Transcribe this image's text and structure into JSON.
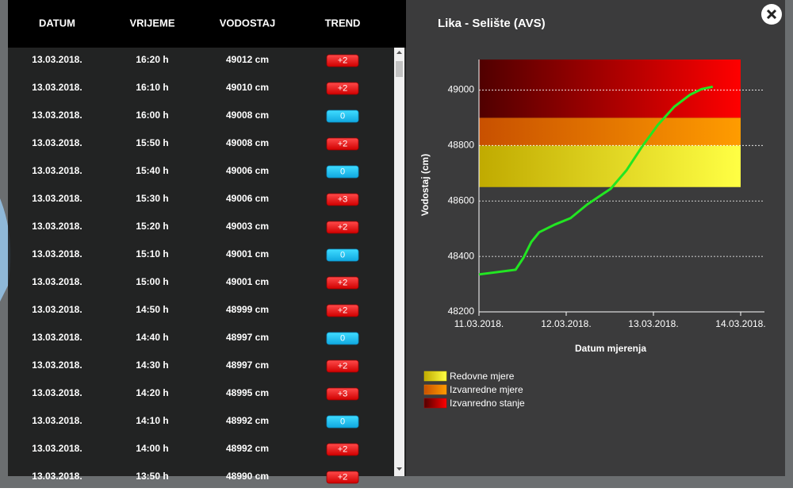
{
  "table": {
    "headers": [
      "DATUM",
      "VRIJEME",
      "VODOSTAJ",
      "TREND"
    ],
    "rows": [
      [
        "13.03.2018.",
        "16:20 h",
        "49012 cm",
        "+2"
      ],
      [
        "13.03.2018.",
        "16:10 h",
        "49010 cm",
        "+2"
      ],
      [
        "13.03.2018.",
        "16:00 h",
        "49008 cm",
        "0"
      ],
      [
        "13.03.2018.",
        "15:50 h",
        "49008 cm",
        "+2"
      ],
      [
        "13.03.2018.",
        "15:40 h",
        "49006 cm",
        "0"
      ],
      [
        "13.03.2018.",
        "15:30 h",
        "49006 cm",
        "+3"
      ],
      [
        "13.03.2018.",
        "15:20 h",
        "49003 cm",
        "+2"
      ],
      [
        "13.03.2018.",
        "15:10 h",
        "49001 cm",
        "0"
      ],
      [
        "13.03.2018.",
        "15:00 h",
        "49001 cm",
        "+2"
      ],
      [
        "13.03.2018.",
        "14:50 h",
        "48999 cm",
        "+2"
      ],
      [
        "13.03.2018.",
        "14:40 h",
        "48997 cm",
        "0"
      ],
      [
        "13.03.2018.",
        "14:30 h",
        "48997 cm",
        "+2"
      ],
      [
        "13.03.2018.",
        "14:20 h",
        "48995 cm",
        "+3"
      ],
      [
        "13.03.2018.",
        "14:10 h",
        "48992 cm",
        "0"
      ],
      [
        "13.03.2018.",
        "14:00 h",
        "48992 cm",
        "+2"
      ],
      [
        "13.03.2018.",
        "13:50 h",
        "48990 cm",
        "+2"
      ]
    ]
  },
  "chart_data": {
    "type": "line",
    "title": "Lika - Selište (AVS)",
    "x_label": "Datum mjerenja",
    "y_label": "Vodostaj (cm)",
    "xlim": [
      0,
      3
    ],
    "ylim": [
      48200,
      49110
    ],
    "xticks": [
      {
        "value": 0,
        "label": "11.03.2018."
      },
      {
        "value": 1,
        "label": "12.03.2018."
      },
      {
        "value": 2,
        "label": "13.03.2018."
      },
      {
        "value": 3,
        "label": "14.03.2018."
      }
    ],
    "yticks": [
      48200,
      48400,
      48600,
      48800,
      49000
    ],
    "grid": true,
    "bands": [
      {
        "name": "Redovne mjere",
        "from": 48650,
        "to": 48800,
        "color": "#e0d000"
      },
      {
        "name": "Izvanredne mjere",
        "from": 48800,
        "to": 48900,
        "color": "#f08000"
      },
      {
        "name": "Izvanredno stanje",
        "from": 48900,
        "to": 49110,
        "color": "#c00000"
      }
    ],
    "series": [
      {
        "color": "#22e622",
        "x": [
          0,
          0.42,
          0.51,
          0.6,
          0.69,
          0.87,
          1.05,
          1.24,
          1.51,
          1.69,
          1.87,
          2.05,
          2.24,
          2.42,
          2.55,
          2.68
        ],
        "values": [
          48335,
          48352,
          48395,
          48452,
          48487,
          48515,
          48538,
          48587,
          48644,
          48710,
          48796,
          48874,
          48940,
          48983,
          49003,
          49012
        ]
      }
    ]
  }
}
